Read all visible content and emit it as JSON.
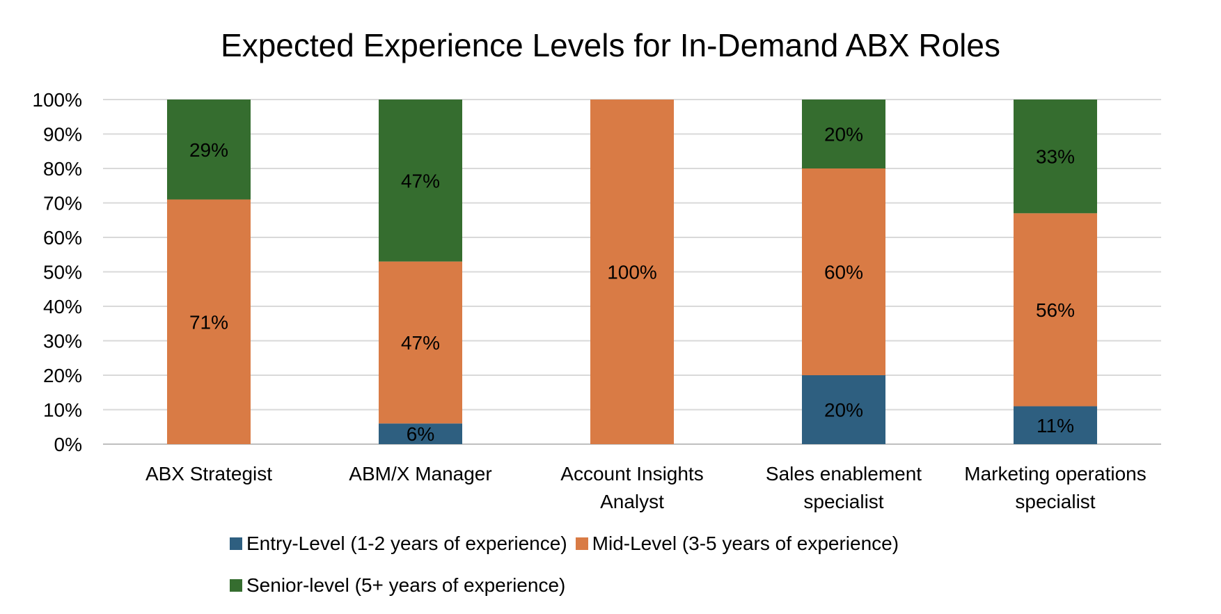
{
  "chart_data": {
    "type": "bar",
    "stacked": true,
    "title": "Expected Experience Levels for In-Demand ABX Roles",
    "categories": [
      [
        "ABX Strategist"
      ],
      [
        "ABM/X Manager"
      ],
      [
        "Account Insights",
        "Analyst"
      ],
      [
        "Sales enablement",
        "specialist"
      ],
      [
        "Marketing operations",
        "specialist"
      ]
    ],
    "series": [
      {
        "name": "Entry-Level (1-2 years of experience)",
        "color": "#2e5f80",
        "values": [
          0,
          6,
          0,
          20,
          11
        ]
      },
      {
        "name": "Mid-Level (3-5 years of experience)",
        "color": "#d97b45",
        "values": [
          71,
          47,
          100,
          60,
          56
        ]
      },
      {
        "name": "Senior-level (5+ years of experience)",
        "color": "#356d2f",
        "values": [
          29,
          47,
          0,
          20,
          33
        ]
      }
    ],
    "ylim": [
      0,
      100
    ],
    "yticks": [
      "0%",
      "10%",
      "20%",
      "30%",
      "40%",
      "50%",
      "60%",
      "70%",
      "80%",
      "90%",
      "100%"
    ],
    "grid": true,
    "legend": "bottom"
  }
}
